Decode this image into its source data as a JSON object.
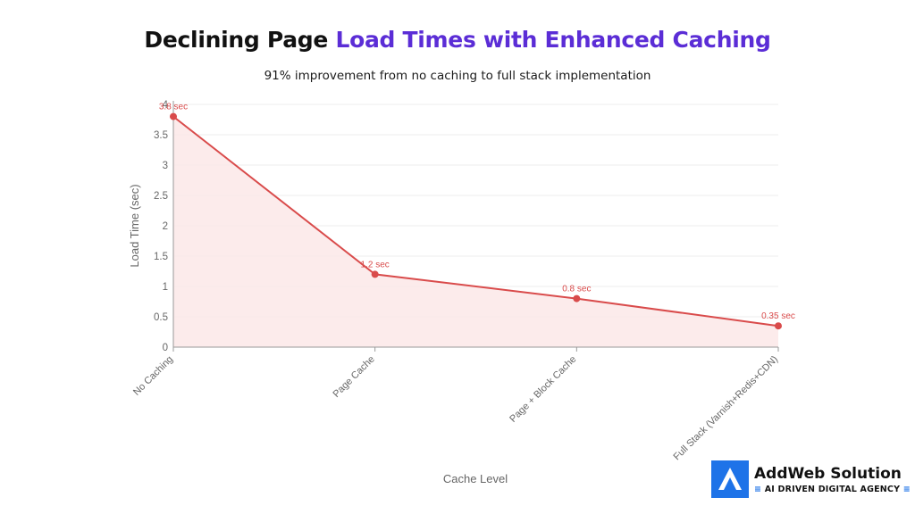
{
  "header": {
    "title_part1": "Declining Page ",
    "title_part2": "Load Times with Enhanced Caching",
    "subtitle": "91% improvement from no caching to full stack implementation"
  },
  "chart_data": {
    "type": "area",
    "categories": [
      "No Caching",
      "Page Cache",
      "Page + Block Cache",
      "Full Stack (Varnish+Redis+CDN)"
    ],
    "values": [
      3.8,
      1.2,
      0.8,
      0.35
    ],
    "data_labels": [
      "3.8 sec",
      "1.2 sec",
      "0.8 sec",
      "0.35 sec"
    ],
    "xlabel": "Cache Level",
    "ylabel": "Load Time (sec)",
    "ylim": [
      0,
      4
    ],
    "yticks": [
      0,
      0.5,
      1,
      1.5,
      2,
      2.5,
      3,
      3.5,
      4
    ],
    "ytick_labels": [
      "0",
      "0.5",
      "1",
      "1.5",
      "2",
      "2.5",
      "3",
      "3.5",
      "4"
    ],
    "grid": true,
    "colors": {
      "line": "#d94b4b",
      "fill": "#fce8e8",
      "grid": "#ececec",
      "axis": "#999999"
    }
  },
  "branding": {
    "name": "AddWeb Solution",
    "tagline": "AI DRIVEN DIGITAL AGENCY",
    "deco_left": "≡",
    "deco_right": "≡",
    "accent": "#1e73e8"
  }
}
